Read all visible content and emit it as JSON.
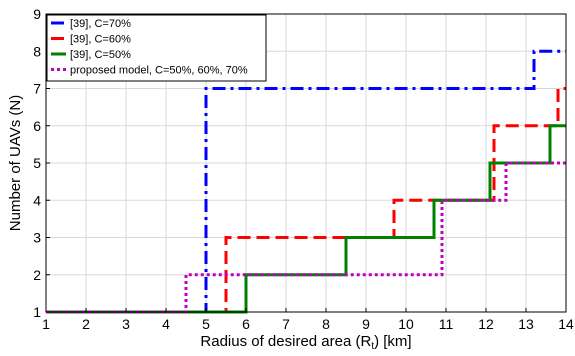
{
  "chart_data": {
    "type": "line",
    "step": "post",
    "xlabel": "Radius of desired area (R",
    "xlabel_sub": "t",
    "xlabel_tail": ") [km]",
    "ylabel": "Number of UAVs (N)",
    "xlim": [
      1,
      14
    ],
    "ylim": [
      1,
      9
    ],
    "xticks": [
      1,
      2,
      3,
      4,
      5,
      6,
      7,
      8,
      9,
      10,
      11,
      12,
      13,
      14
    ],
    "yticks": [
      1,
      2,
      3,
      4,
      5,
      6,
      7,
      8,
      9
    ],
    "grid": true,
    "legend_position": "top-left",
    "series": [
      {
        "name": "[39], C=70%",
        "color": "#0000ff",
        "dash": "dashdot",
        "x": [
          1,
          5.0,
          13.2,
          14
        ],
        "y": [
          1,
          7,
          8,
          8
        ]
      },
      {
        "name": "[39], C=60%",
        "color": "#ff0000",
        "dash": "dashed",
        "x": [
          1,
          5.5,
          9.7,
          10.0,
          12.2,
          13.8,
          14
        ],
        "y": [
          1,
          3,
          4,
          4,
          6,
          7,
          7
        ]
      },
      {
        "name": "[39], C=50%",
        "color": "#008000",
        "dash": "solid",
        "x": [
          1,
          6.0,
          8.5,
          10.7,
          12.1,
          13.6,
          14
        ],
        "y": [
          1,
          2,
          3,
          4,
          5,
          6,
          6
        ]
      },
      {
        "name": "proposed model, C=50%, 60%, 70%",
        "color": "#c000c0",
        "dash": "dotted",
        "x": [
          1,
          4.5,
          10.9,
          12.5,
          14
        ],
        "y": [
          1,
          2,
          4,
          5,
          5
        ]
      }
    ]
  }
}
